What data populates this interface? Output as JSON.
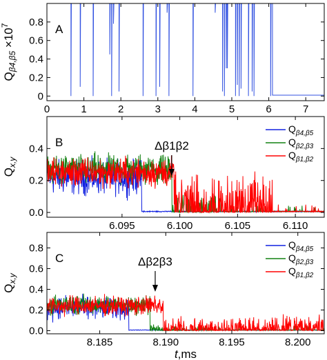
{
  "chart_data": [
    {
      "panel": "A",
      "type": "line",
      "ylabel_main": "Q",
      "ylabel_sub": "β4,β5",
      "ylabel_scale": "×10",
      "ylabel_exp": "7",
      "xlim": [
        0,
        7.5
      ],
      "ylim": [
        -0.05,
        1.0
      ],
      "x_ticks": [
        0,
        1,
        2,
        3,
        4,
        5,
        6,
        7
      ],
      "y_ticks": [
        0,
        0.2,
        0.4,
        0.6,
        0.8
      ],
      "y_tick_labels": [
        "0",
        "0.2",
        "0.4",
        "0.6",
        "0.8"
      ],
      "series": [
        {
          "color": "#3050e0",
          "baseline": 1.0,
          "dips": [
            [
              0.65,
              0.0
            ],
            [
              0.9,
              0.1
            ],
            [
              1.25,
              0.0
            ],
            [
              1.7,
              0.45
            ],
            [
              1.75,
              0.0
            ],
            [
              1.8,
              0.78
            ],
            [
              1.95,
              0.05
            ],
            [
              2.6,
              0.0
            ],
            [
              2.95,
              0.0
            ],
            [
              3.05,
              0.1
            ],
            [
              3.25,
              0.9
            ],
            [
              3.3,
              0.0
            ],
            [
              3.95,
              0.0
            ],
            [
              4.55,
              0.9
            ],
            [
              4.75,
              0.05
            ],
            [
              4.8,
              0.0
            ],
            [
              4.85,
              0.3
            ],
            [
              4.88,
              0.3
            ],
            [
              5.1,
              0.0
            ],
            [
              5.15,
              0.12
            ],
            [
              5.2,
              0.0
            ],
            [
              5.25,
              0.08
            ],
            [
              5.45,
              0.0
            ],
            [
              5.55,
              0.05
            ],
            [
              5.6,
              0.0
            ],
            [
              6.05,
              0.0
            ]
          ],
          "drop_x": 6.1,
          "end_value": 0.01
        }
      ]
    },
    {
      "panel": "B",
      "type": "line",
      "ylabel_main": "Q",
      "ylabel_sub": "x,y",
      "xlim": [
        6.0885,
        6.1125
      ],
      "ylim": [
        -0.03,
        0.6
      ],
      "x_ticks": [
        6.095,
        6.1,
        6.105,
        6.11
      ],
      "x_tick_labels": [
        "6.095",
        "6.100",
        "6.105",
        "6.110"
      ],
      "y_ticks": [
        0,
        0.2,
        0.4
      ],
      "y_tick_labels": [
        "0.0",
        "0.2",
        "0.4"
      ],
      "annotation": "Δβ1β2",
      "annotation_x": 6.0993,
      "series": [
        {
          "name": "Q",
          "sub": "β4,β5",
          "color": "#1020e0",
          "mean": 0.22,
          "noise": 0.07,
          "end": 6.0967,
          "tail_mean": 0.0,
          "tail_end": 6.0967
        },
        {
          "name": "Q",
          "sub": "β2,β3",
          "color": "#108010",
          "mean": 0.27,
          "noise": 0.06,
          "end": 6.0993,
          "tail_mean": 0.06,
          "tail_end": 6.1035
        },
        {
          "name": "Q",
          "sub": "β1,β2",
          "color": "#ff0000",
          "mean": 0.25,
          "noise": 0.06,
          "end": 6.0995,
          "tail_mean": 0.1,
          "tail_end": 6.108
        }
      ]
    },
    {
      "panel": "C",
      "type": "line",
      "ylabel_main": "Q",
      "ylabel_sub": "x,y",
      "xlim": [
        8.181,
        8.202
      ],
      "ylim": [
        -0.03,
        0.95
      ],
      "x_ticks": [
        8.185,
        8.19,
        8.195,
        8.2
      ],
      "x_tick_labels": [
        "8.185",
        "8.190",
        "8.195",
        "8.200"
      ],
      "y_ticks": [
        0,
        0.2,
        0.4,
        0.6,
        0.8
      ],
      "y_tick_labels": [
        "0.0",
        "0.2",
        "0.4",
        "0.6",
        "0.8"
      ],
      "xlabel_main": "t",
      "xlabel_unit": ",ms",
      "annotation": "Δβ2β3",
      "annotation_x": 8.1892,
      "series": [
        {
          "name": "Q",
          "sub": "β4,β5",
          "color": "#1020e0",
          "mean": 0.22,
          "noise": 0.07,
          "end": 8.1872,
          "tail_mean": 0.0,
          "tail_end": 8.1872
        },
        {
          "name": "Q",
          "sub": "β2,β3",
          "color": "#108010",
          "mean": 0.25,
          "noise": 0.06,
          "end": 8.1888,
          "tail_mean": 0.02,
          "tail_end": 8.1935
        },
        {
          "name": "Q",
          "sub": "β1,β2",
          "color": "#ff0000",
          "mean": 0.24,
          "noise": 0.06,
          "end": 8.1898,
          "tail_mean": 0.06,
          "tail_end": 8.202
        }
      ]
    }
  ]
}
